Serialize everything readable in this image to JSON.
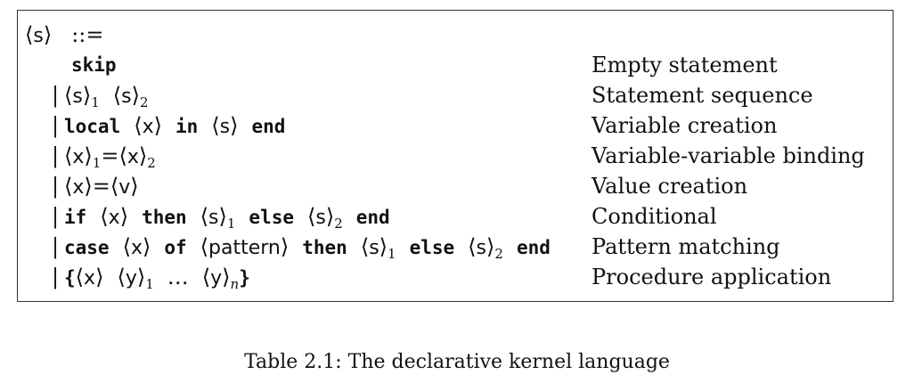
{
  "grammar_header": {
    "nonterminal": "s",
    "defines": "::="
  },
  "rows": [
    {
      "separator": "",
      "description": "Empty statement",
      "keywords": [
        "skip"
      ]
    },
    {
      "separator": "|",
      "description": "Statement sequence",
      "nonterminals": [
        "s",
        "1",
        "s",
        "2"
      ]
    },
    {
      "separator": "|",
      "description": "Variable creation",
      "keywords": [
        "local",
        "in",
        "end"
      ],
      "nonterminals": [
        "x",
        "s"
      ]
    },
    {
      "separator": "|",
      "description": "Variable-variable binding",
      "nonterminals": [
        "x",
        "1",
        "=",
        "x",
        "2"
      ]
    },
    {
      "separator": "|",
      "description": "Value creation",
      "nonterminals": [
        "x",
        "=",
        "v"
      ]
    },
    {
      "separator": "|",
      "description": "Conditional",
      "keywords": [
        "if",
        "then",
        "else",
        "end"
      ],
      "nonterminals": [
        "x",
        "s",
        "1",
        "s",
        "2"
      ]
    },
    {
      "separator": "|",
      "description": "Pattern matching",
      "keywords": [
        "case",
        "of",
        "then",
        "else",
        "end"
      ],
      "nonterminals": [
        "x",
        "pattern",
        "s",
        "1",
        "s",
        "2"
      ]
    },
    {
      "separator": "|",
      "description": "Procedure application",
      "keywords": [
        "{",
        "}"
      ],
      "nonterminals": [
        "x",
        "y",
        "1",
        "…",
        "y",
        "n"
      ]
    }
  ],
  "caption": "Table 2.1: The declarative kernel language"
}
